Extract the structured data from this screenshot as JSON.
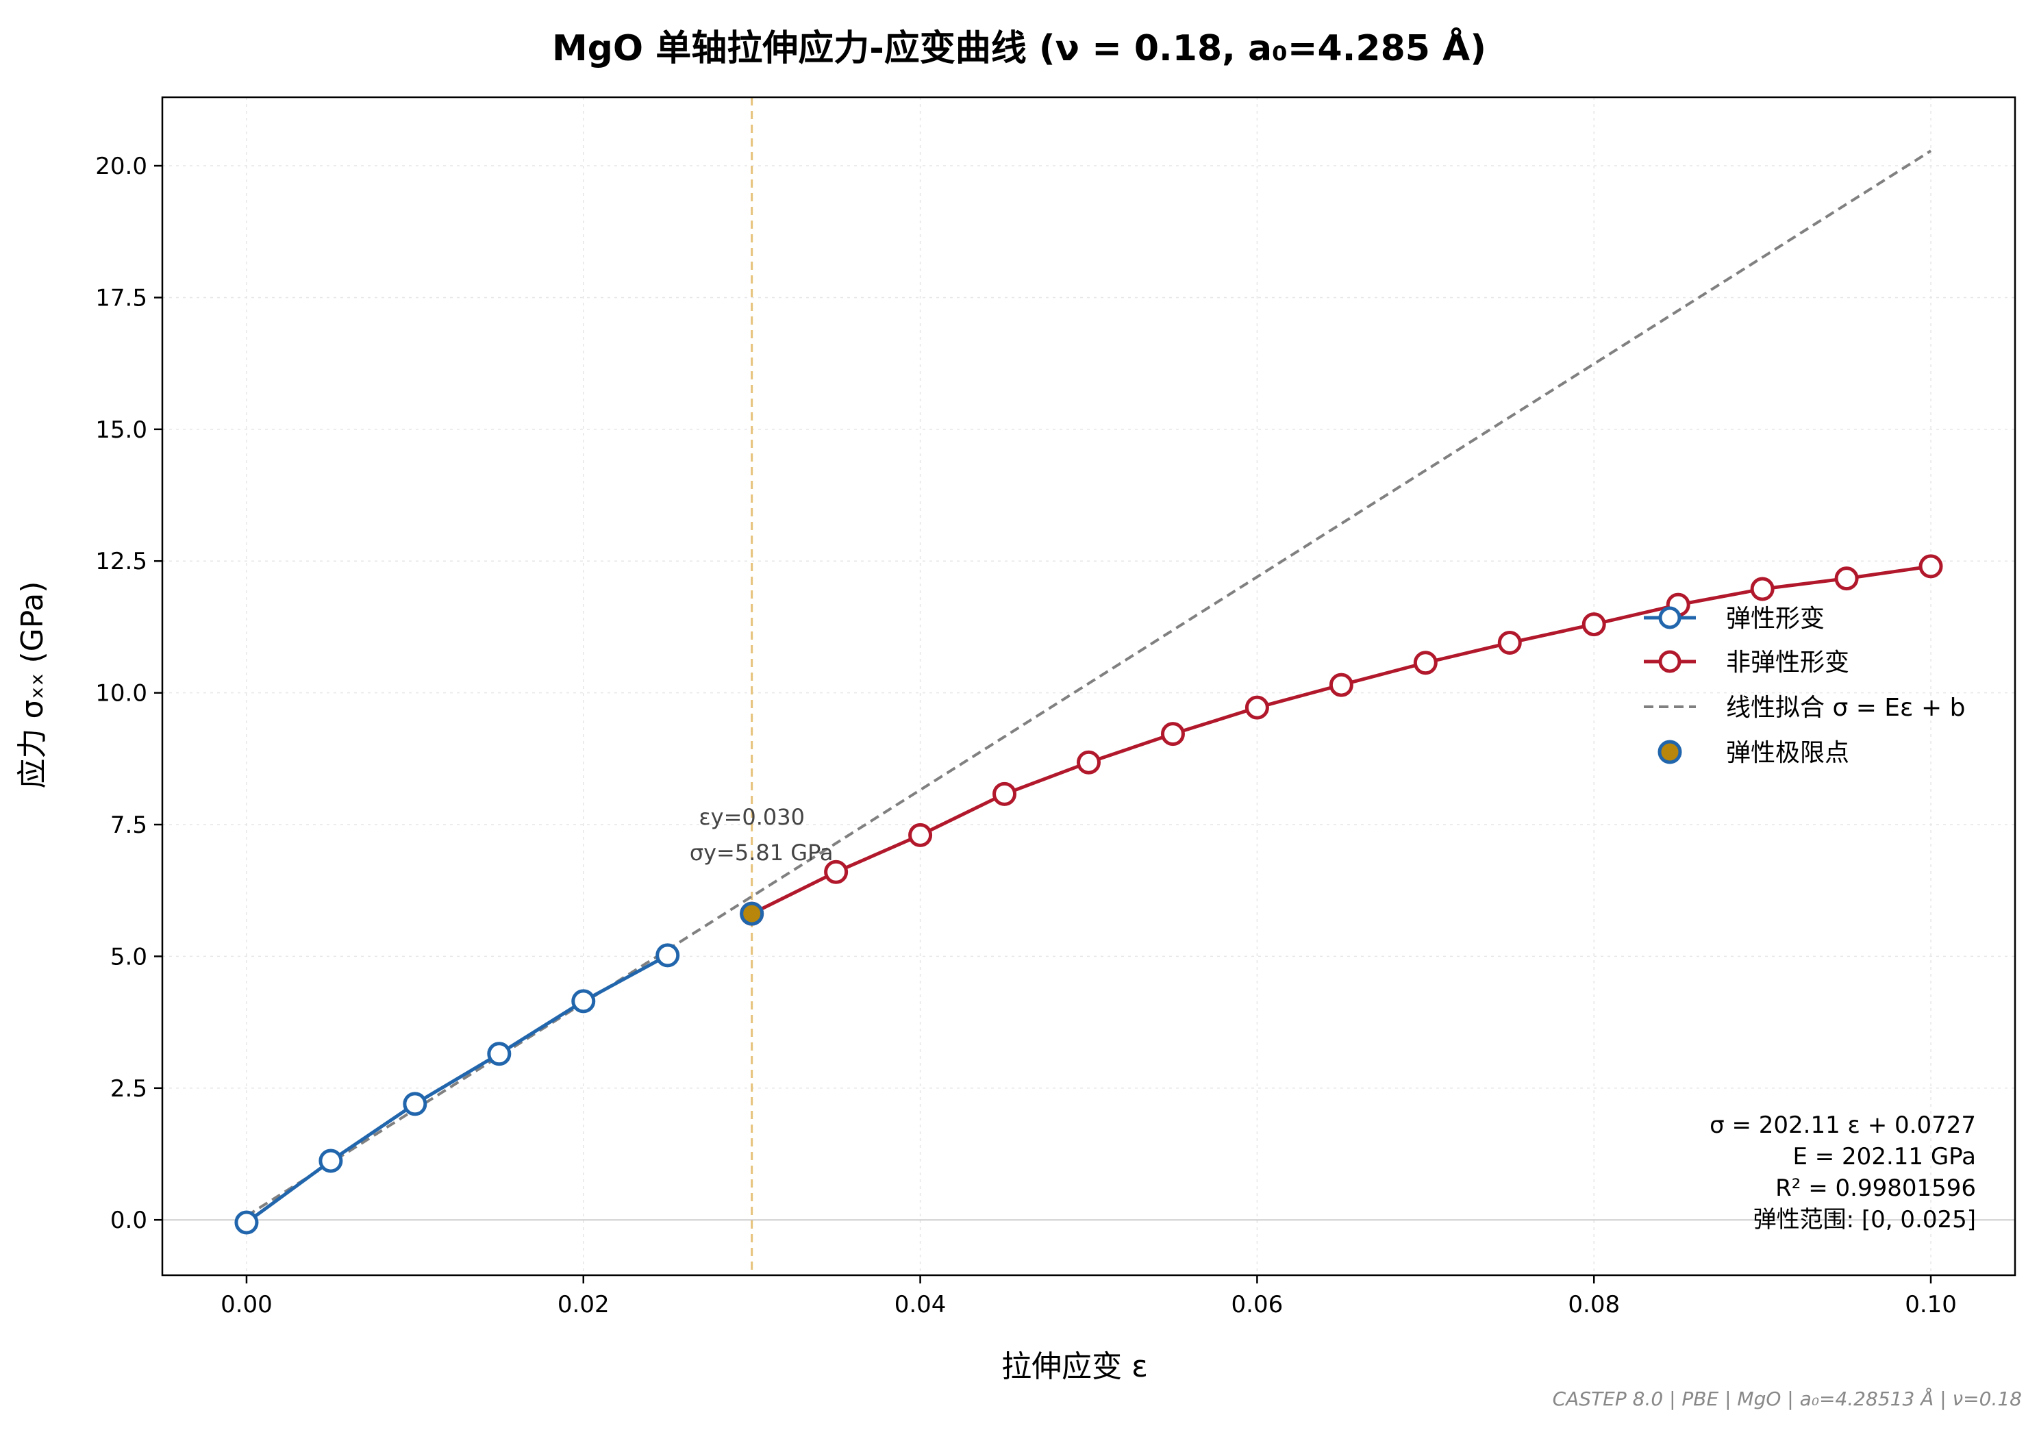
{
  "chart_data": {
    "type": "line",
    "title": "MgO 单轴拉伸应力-应变曲线 (ν = 0.18, a₀=4.285 Å)",
    "xlabel": "拉伸应变 ε",
    "ylabel": "应力 σₓₓ (GPa)",
    "xlim": [
      -0.005,
      0.105
    ],
    "ylim": [
      -1.05,
      21.3
    ],
    "xticks": [
      0.0,
      0.02,
      0.04,
      0.06,
      0.08,
      0.1
    ],
    "xtick_labels": [
      "0.00",
      "0.02",
      "0.04",
      "0.06",
      "0.08",
      "0.10"
    ],
    "yticks": [
      0.0,
      2.5,
      5.0,
      7.5,
      10.0,
      12.5,
      15.0,
      17.5,
      20.0
    ],
    "ytick_labels": [
      "0.0",
      "2.5",
      "5.0",
      "7.5",
      "10.0",
      "12.5",
      "15.0",
      "17.5",
      "20.0"
    ],
    "grid": true,
    "legend_position": "right",
    "series": [
      {
        "name": "弹性形变",
        "color": "#2166ac",
        "style": "line-markers",
        "x": [
          0.0,
          0.005,
          0.01,
          0.015,
          0.02,
          0.025
        ],
        "y": [
          -0.05,
          1.12,
          2.2,
          3.15,
          4.15,
          5.02
        ]
      },
      {
        "name": "非弹性形变",
        "color": "#b2182b",
        "style": "line-markers",
        "x": [
          0.03,
          0.035,
          0.04,
          0.045,
          0.05,
          0.055,
          0.06,
          0.065,
          0.07,
          0.075,
          0.08,
          0.085,
          0.09,
          0.095,
          0.1
        ],
        "y": [
          5.81,
          6.6,
          7.3,
          8.08,
          8.68,
          9.22,
          9.72,
          10.15,
          10.57,
          10.95,
          11.3,
          11.67,
          11.97,
          12.17,
          12.4
        ]
      },
      {
        "name": "线性拟合 σ = Eε + b",
        "color": "#808080",
        "style": "dashed",
        "slope": 202.11,
        "intercept": 0.0727,
        "x_range": [
          0.0,
          0.1
        ]
      },
      {
        "name": "弹性极限点",
        "color": "#b8860b",
        "edge_color": "#2166ac",
        "style": "marker",
        "x": [
          0.03
        ],
        "y": [
          5.81
        ]
      }
    ],
    "vline": {
      "x": 0.03,
      "color": "#e6c27a",
      "style": "dashed"
    },
    "annotations": {
      "yield_strain": "εy=0.030",
      "yield_stress": "σy=5.81 GPa"
    },
    "fit_box": {
      "line1": "σ = 202.11 ε + 0.0727",
      "line2": "E = 202.11 GPa",
      "line3": "R² = 0.99801596",
      "line4": "弹性范围: [0, 0.025]"
    },
    "footer": "CASTEP 8.0 | PBE | MgO | a₀=4.28513 Å | ν=0.18"
  }
}
